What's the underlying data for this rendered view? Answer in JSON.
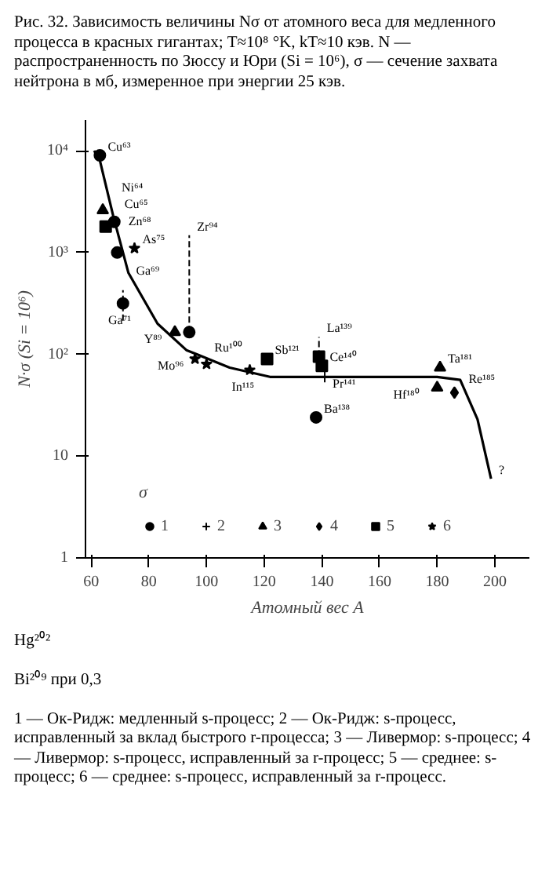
{
  "chart_data": {
    "type": "scatter",
    "title": "Рис. 32. Зависимость величины Nσ от атомного веса для медленного процесса в красных гигантах; T≈10⁸ °K, kT≈10 кэв. N — распространенность по Зюссу и Юри (Si = 10⁶), σ — сечение захвата нейтрона в мб, измеренное при энергии 25 кэв.",
    "xlabel": "Атомный вес A",
    "ylabel": "N·σ (Si = 10⁶)",
    "legend_title": "σ",
    "xlim": [
      58,
      212
    ],
    "xticks": [
      60,
      80,
      100,
      120,
      140,
      160,
      180,
      200
    ],
    "ylim": [
      1,
      20000
    ],
    "yticks": [
      {
        "value": 1,
        "label": "1"
      },
      {
        "value": 10,
        "label": "10"
      },
      {
        "value": 100,
        "label": "10²"
      },
      {
        "value": 1000,
        "label": "10³"
      },
      {
        "value": 10000,
        "label": "10⁴"
      }
    ],
    "log": "y",
    "grid": false,
    "legend": "bottom",
    "series": [
      {
        "type": "line",
        "color": "#000000",
        "x": [
          61,
          63,
          67.6,
          72.9,
          83,
          93,
          108,
          122,
          150,
          180,
          188,
          194,
          198.7
        ],
        "values": [
          10000,
          8000,
          2300,
          630,
          200,
          110,
          74,
          60,
          60,
          60,
          56,
          23,
          6
        ]
      },
      {
        "name": "1",
        "color": "#000000",
        "marker": "circle",
        "x": [
          63,
          68,
          69,
          71,
          94,
          138
        ],
        "values": [
          9000,
          2000,
          1000,
          316,
          165,
          24
        ],
        "errors": [
          null,
          null,
          null,
          [
            214,
            427
          ],
          [
            165,
            1480
          ],
          null
        ]
      },
      {
        "name": "2",
        "color": "#000000",
        "marker": "cross",
        "x": [
          141
        ],
        "values": [
          60
        ]
      },
      {
        "name": "3",
        "color": "#000000",
        "marker": "triangle",
        "x": [
          64,
          89,
          181,
          180
        ],
        "values": [
          2600,
          165,
          74,
          47
        ]
      },
      {
        "name": "4",
        "color": "#000000",
        "marker": "diamond",
        "x": [
          186
        ],
        "values": [
          42
        ]
      },
      {
        "name": "5",
        "color": "#000000",
        "marker": "square",
        "x": [
          65,
          121,
          139,
          140
        ],
        "values": [
          1800,
          90,
          95,
          77
        ],
        "errors": [
          null,
          null,
          [
            95,
            148
          ],
          null
        ]
      },
      {
        "name": "6",
        "color": "#000000",
        "marker": "star",
        "x": [
          75,
          96,
          100,
          115
        ],
        "values": [
          1100,
          90,
          80,
          70
        ]
      }
    ],
    "annotations": [
      {
        "text": "Cu⁶³",
        "x": 63,
        "y": 9000
      },
      {
        "text": "Ni⁶⁴",
        "x": 64,
        "y": 2600
      },
      {
        "text": "Cu⁶⁵",
        "x": 65,
        "y": 1800
      },
      {
        "text": "Zn⁶⁸",
        "x": 68,
        "y": 2000
      },
      {
        "text": "Ga⁶⁹",
        "x": 69,
        "y": 1000
      },
      {
        "text": "Ga⁷¹",
        "x": 71,
        "y": 316
      },
      {
        "text": "As⁷⁵",
        "x": 75,
        "y": 1100
      },
      {
        "text": "Y⁸⁹",
        "x": 89,
        "y": 165
      },
      {
        "text": "Zr⁹⁴",
        "x": 94,
        "y": 1480
      },
      {
        "text": "Mo⁹⁶",
        "x": 96,
        "y": 90
      },
      {
        "text": "Ru¹⁰⁰",
        "x": 100,
        "y": 80
      },
      {
        "text": "In¹¹⁵",
        "x": 115,
        "y": 70
      },
      {
        "text": "Sb¹²¹",
        "x": 121,
        "y": 90
      },
      {
        "text": "La¹³⁹",
        "x": 139,
        "y": 148
      },
      {
        "text": "Ba¹³⁸",
        "x": 138,
        "y": 24
      },
      {
        "text": "Ce¹⁴⁰",
        "x": 140,
        "y": 77
      },
      {
        "text": "Pr¹⁴¹",
        "x": 141,
        "y": 60
      },
      {
        "text": "Hf¹⁸⁰",
        "x": 180,
        "y": 47
      },
      {
        "text": "Ta¹⁸¹",
        "x": 181,
        "y": 74
      },
      {
        "text": "Re¹⁸⁵",
        "x": 186,
        "y": 56
      },
      {
        "text": "?",
        "x": 198.7,
        "y": 6
      },
      "Hg²⁰²",
      "Bi²⁰⁹ при 0,3",
      "1 — Ок-Ридж: медленный s-процесс; 2 — Ок-Ридж: s-процесс, исправленный за вклад быстрого r-процесса; 3 — Ливермор: s-процесс; 4 — Ливермор: s-процесс, исправленный за r-процесс; 5 — среднее: s-процесс; 6 — среднее: s-процесс, исправленный за r-процесс."
    ]
  }
}
